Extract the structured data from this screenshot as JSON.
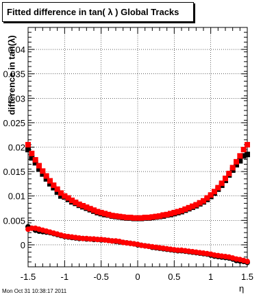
{
  "title": "Fitted difference in tan( λ )  Global Tracks",
  "footer_timestamp": "Mon Oct 31 10:38:17 2011",
  "chart_data": {
    "type": "scatter",
    "title": "Fitted difference in tan( λ )  Global Tracks",
    "xlabel": "η",
    "ylabel": "difference in tan(λ)",
    "xlim": [
      -1.5,
      1.5
    ],
    "ylim": [
      -0.0045,
      0.0445
    ],
    "x_ticks": [
      -1.5,
      -1,
      -0.5,
      0,
      0.5,
      1,
      1.5
    ],
    "x_tick_labels": [
      "-1.5",
      "-1",
      "-0.5",
      "0",
      "0.5",
      "1",
      "1.5"
    ],
    "y_ticks": [
      0,
      0.005,
      0.01,
      0.015,
      0.02,
      0.025,
      0.03,
      0.035,
      0.04
    ],
    "y_tick_labels": [
      "0",
      "0.005",
      "0.01",
      "0.015",
      "0.02",
      "0.025",
      "0.03",
      "0.035",
      "0.04"
    ],
    "grid": true,
    "series": [
      {
        "color": "#000000",
        "marker": "square",
        "x": [
          -1.5,
          -1.45,
          -1.4,
          -1.35,
          -1.3,
          -1.25,
          -1.2,
          -1.15,
          -1.1,
          -1.05,
          -1.0,
          -0.95,
          -0.9,
          -0.85,
          -0.8,
          -0.75,
          -0.7,
          -0.65,
          -0.6,
          -0.55,
          -0.5,
          -0.45,
          -0.4,
          -0.35,
          -0.3,
          -0.25,
          -0.2,
          -0.15,
          -0.1,
          -0.05,
          0.0,
          0.05,
          0.1,
          0.15,
          0.2,
          0.25,
          0.3,
          0.35,
          0.4,
          0.45,
          0.5,
          0.55,
          0.6,
          0.65,
          0.7,
          0.75,
          0.8,
          0.85,
          0.9,
          0.95,
          1.0,
          1.05,
          1.1,
          1.15,
          1.2,
          1.25,
          1.3,
          1.35,
          1.4,
          1.45,
          1.5
        ],
        "y": [
          0.0195,
          0.0178,
          0.0168,
          0.0155,
          0.0145,
          0.0135,
          0.0125,
          0.0117,
          0.0108,
          0.01,
          0.0098,
          0.0093,
          0.0088,
          0.0085,
          0.0081,
          0.0078,
          0.0075,
          0.0072,
          0.0069,
          0.0066,
          0.0064,
          0.0062,
          0.0061,
          0.0059,
          0.0058,
          0.0057,
          0.0056,
          0.0055,
          0.0055,
          0.0054,
          0.0054,
          0.0054,
          0.0055,
          0.0055,
          0.0056,
          0.0057,
          0.0058,
          0.0059,
          0.0061,
          0.0062,
          0.0064,
          0.0066,
          0.0068,
          0.0071,
          0.0074,
          0.0077,
          0.008,
          0.0084,
          0.0088,
          0.0093,
          0.0099,
          0.0106,
          0.0114,
          0.0122,
          0.0132,
          0.0143,
          0.0153,
          0.0164,
          0.0172,
          0.0182,
          0.0185
        ]
      },
      {
        "color": "#ff0000",
        "marker": "square",
        "x": [
          -1.5,
          -1.45,
          -1.4,
          -1.35,
          -1.3,
          -1.25,
          -1.2,
          -1.15,
          -1.1,
          -1.05,
          -1.0,
          -0.95,
          -0.9,
          -0.85,
          -0.8,
          -0.75,
          -0.7,
          -0.65,
          -0.6,
          -0.55,
          -0.5,
          -0.45,
          -0.4,
          -0.35,
          -0.3,
          -0.25,
          -0.2,
          -0.15,
          -0.1,
          -0.05,
          0.0,
          0.05,
          0.1,
          0.15,
          0.2,
          0.25,
          0.3,
          0.35,
          0.4,
          0.45,
          0.5,
          0.55,
          0.6,
          0.65,
          0.7,
          0.75,
          0.8,
          0.85,
          0.9,
          0.95,
          1.0,
          1.05,
          1.1,
          1.15,
          1.2,
          1.25,
          1.3,
          1.35,
          1.4,
          1.45,
          1.5
        ],
        "y": [
          0.0205,
          0.0187,
          0.0174,
          0.0162,
          0.0151,
          0.0141,
          0.0131,
          0.0122,
          0.0114,
          0.0106,
          0.01,
          0.0096,
          0.0091,
          0.0087,
          0.0083,
          0.008,
          0.0077,
          0.0074,
          0.0071,
          0.0068,
          0.0066,
          0.0064,
          0.0062,
          0.006,
          0.0059,
          0.0058,
          0.0057,
          0.0056,
          0.0056,
          0.0055,
          0.0055,
          0.0055,
          0.0056,
          0.0056,
          0.0057,
          0.0058,
          0.0059,
          0.0061,
          0.0062,
          0.0064,
          0.0066,
          0.0068,
          0.007,
          0.0073,
          0.0076,
          0.0079,
          0.0082,
          0.0086,
          0.009,
          0.0096,
          0.0102,
          0.0109,
          0.0117,
          0.0126,
          0.0136,
          0.0146,
          0.0158,
          0.017,
          0.0182,
          0.0195,
          0.0205
        ]
      },
      {
        "color": "#000000",
        "marker": "circle",
        "x": [
          -1.5,
          -1.45,
          -1.4,
          -1.35,
          -1.3,
          -1.25,
          -1.2,
          -1.15,
          -1.1,
          -1.05,
          -1.0,
          -0.95,
          -0.9,
          -0.85,
          -0.8,
          -0.75,
          -0.7,
          -0.65,
          -0.6,
          -0.55,
          -0.5,
          -0.45,
          -0.4,
          -0.35,
          -0.3,
          -0.25,
          -0.2,
          -0.15,
          -0.1,
          -0.05,
          0.0,
          0.05,
          0.1,
          0.15,
          0.2,
          0.25,
          0.3,
          0.35,
          0.4,
          0.45,
          0.5,
          0.55,
          0.6,
          0.65,
          0.7,
          0.75,
          0.8,
          0.85,
          0.9,
          0.95,
          1.0,
          1.05,
          1.1,
          1.15,
          1.2,
          1.25,
          1.3,
          1.35,
          1.4,
          1.45,
          1.5
        ],
        "y": [
          0.0037,
          0.0034,
          0.003,
          0.0028,
          0.0027,
          0.0026,
          0.0025,
          0.0023,
          0.0021,
          0.0019,
          0.0017,
          0.0016,
          0.0015,
          0.0014,
          0.0013,
          0.0013,
          0.0012,
          0.0012,
          0.0011,
          0.0011,
          0.001,
          0.001,
          0.0009,
          0.0008,
          0.0007,
          0.0006,
          0.0005,
          0.0004,
          0.0003,
          0.0002,
          0.0,
          -0.0001,
          -0.0002,
          -0.0003,
          -0.0005,
          -0.0006,
          -0.0007,
          -0.0008,
          -0.0009,
          -0.001,
          -0.0011,
          -0.0012,
          -0.0012,
          -0.0013,
          -0.0014,
          -0.0015,
          -0.0016,
          -0.0017,
          -0.0018,
          -0.0019,
          -0.0021,
          -0.0023,
          -0.0024,
          -0.0025,
          -0.0026,
          -0.0027,
          -0.0029,
          -0.0032,
          -0.0033,
          -0.0034,
          -0.0036
        ]
      },
      {
        "color": "#ff0000",
        "marker": "circle",
        "x": [
          -1.5,
          -1.45,
          -1.4,
          -1.35,
          -1.3,
          -1.25,
          -1.2,
          -1.15,
          -1.1,
          -1.05,
          -1.0,
          -0.95,
          -0.9,
          -0.85,
          -0.8,
          -0.75,
          -0.7,
          -0.65,
          -0.6,
          -0.55,
          -0.5,
          -0.45,
          -0.4,
          -0.35,
          -0.3,
          -0.25,
          -0.2,
          -0.15,
          -0.1,
          -0.05,
          0.0,
          0.05,
          0.1,
          0.15,
          0.2,
          0.25,
          0.3,
          0.35,
          0.4,
          0.45,
          0.5,
          0.55,
          0.6,
          0.65,
          0.7,
          0.75,
          0.8,
          0.85,
          0.9,
          0.95,
          1.0,
          1.05,
          1.1,
          1.15,
          1.2,
          1.25,
          1.3,
          1.35,
          1.4,
          1.45,
          1.5
        ],
        "y": [
          0.0032,
          0.0034,
          0.0034,
          0.0032,
          0.003,
          0.0028,
          0.0026,
          0.0024,
          0.0022,
          0.002,
          0.0018,
          0.0017,
          0.0016,
          0.0015,
          0.0014,
          0.0013,
          0.0013,
          0.0012,
          0.0012,
          0.0011,
          0.0011,
          0.001,
          0.0009,
          0.0008,
          0.0008,
          0.0007,
          0.0005,
          0.0004,
          0.0003,
          0.0002,
          0.0001,
          -0.0001,
          -0.0002,
          -0.0003,
          -0.0004,
          -0.0005,
          -0.0006,
          -0.0007,
          -0.0008,
          -0.0009,
          -0.001,
          -0.0011,
          -0.0011,
          -0.0012,
          -0.0013,
          -0.0014,
          -0.0015,
          -0.0016,
          -0.0017,
          -0.0018,
          -0.0019,
          -0.0021,
          -0.0022,
          -0.0023,
          -0.0024,
          -0.0025,
          -0.0027,
          -0.0029,
          -0.003,
          -0.0032,
          -0.0034
        ]
      }
    ]
  }
}
